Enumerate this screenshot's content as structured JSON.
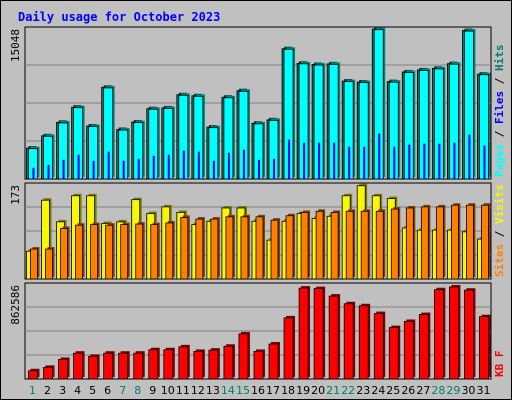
{
  "colors": {
    "frame_bg": "#c0c0c0",
    "plot_bg": "#c0c0c0",
    "grid": "#7f7f7f",
    "title": "#0000ff",
    "hits": "#00806b",
    "files": "#0000ff",
    "pages": "#00ffff",
    "visits": "#f8f806",
    "sites": "#ff8000",
    "kbf": "#ff0000",
    "day_normal": "#000000",
    "day_weekend": "#00806b"
  },
  "chart_data": {
    "type": "bar",
    "title": "Daily usage for October 2023",
    "categories": [
      "1",
      "2",
      "3",
      "4",
      "5",
      "6",
      "7",
      "8",
      "9",
      "10",
      "11",
      "12",
      "13",
      "14",
      "15",
      "16",
      "17",
      "18",
      "19",
      "20",
      "21",
      "22",
      "23",
      "24",
      "25",
      "26",
      "27",
      "28",
      "29",
      "30",
      "31"
    ],
    "weekend_days": [
      "1",
      "7",
      "8",
      "14",
      "15",
      "21",
      "22",
      "28",
      "29"
    ],
    "panels": [
      {
        "id": "hits-files-pages",
        "max_label": "15048",
        "max": 15048,
        "legend": [
          "Pages",
          "/",
          "Files",
          "/",
          "Hits"
        ],
        "series": [
          {
            "name": "Hits",
            "values": [
              3060,
              4280,
              5610,
              7120,
              5250,
              9080,
              4900,
              5640,
              6960,
              7040,
              8340,
              8240,
              5140,
              8100,
              8740,
              5520,
              5860,
              12900,
              11460,
              11340,
              11400,
              9700,
              9600,
              14840,
              9640,
              10600,
              10800,
              10960,
              11420,
              14700,
              10380
            ]
          },
          {
            "name": "Files",
            "values": [
              1100,
              1400,
              1900,
              2400,
              1800,
              2700,
              1800,
              2000,
              2300,
              2400,
              2800,
              2700,
              1800,
              2600,
              2900,
              1900,
              2000,
              3900,
              3600,
              3600,
              3600,
              3200,
              3200,
              4500,
              3200,
              3400,
              3500,
              3500,
              3600,
              4400,
              3300
            ]
          },
          {
            "name": "Pages",
            "values": [
              3000,
              4220,
              5550,
              7060,
              5190,
              9020,
              4840,
              5580,
              6900,
              6980,
              8280,
              8180,
              5080,
              8040,
              8680,
              5460,
              5800,
              12840,
              11400,
              11280,
              11340,
              9640,
              9540,
              14780,
              9580,
              10540,
              10740,
              10900,
              11360,
              14640,
              10320
            ]
          }
        ]
      },
      {
        "id": "visits-sites",
        "max_label": "173",
        "max": 173,
        "legend": [
          "Sites",
          "/",
          "Visits"
        ],
        "series": [
          {
            "name": "Visits",
            "values": [
              50,
              142,
              103,
              150,
              150,
              100,
              103,
              143,
              118,
              130,
              120,
              98,
              104,
              128,
              128,
              104,
              70,
              104,
              118,
              109,
              113,
              150,
              168,
              150,
              145,
              92,
              88,
              88,
              88,
              85,
              72
            ]
          },
          {
            "name": "Sites",
            "values": [
              54,
              54,
              91,
              97,
              98,
              97,
              98,
              99,
              98,
              101,
              111,
              108,
              108,
              112,
              112,
              112,
              106,
              114,
              120,
              122,
              120,
              122,
              122,
              122,
              126,
              128,
              130,
              130,
              133,
              133,
              133
            ]
          }
        ]
      },
      {
        "id": "kbf",
        "max_label": "862586",
        "max": 862586,
        "legend": [
          "KB F"
        ],
        "series": [
          {
            "name": "KB F",
            "values": [
              74000,
              105000,
              176000,
              232000,
              204000,
              232000,
              232000,
              232000,
              263000,
              263000,
              289000,
              248000,
              259000,
              294000,
              405000,
              248000,
              315000,
              549000,
              817000,
              812000,
              745000,
              676000,
              658000,
              588000,
              462000,
              517000,
              579000,
              802000,
              827000,
              798000,
              560000
            ]
          }
        ]
      }
    ]
  }
}
